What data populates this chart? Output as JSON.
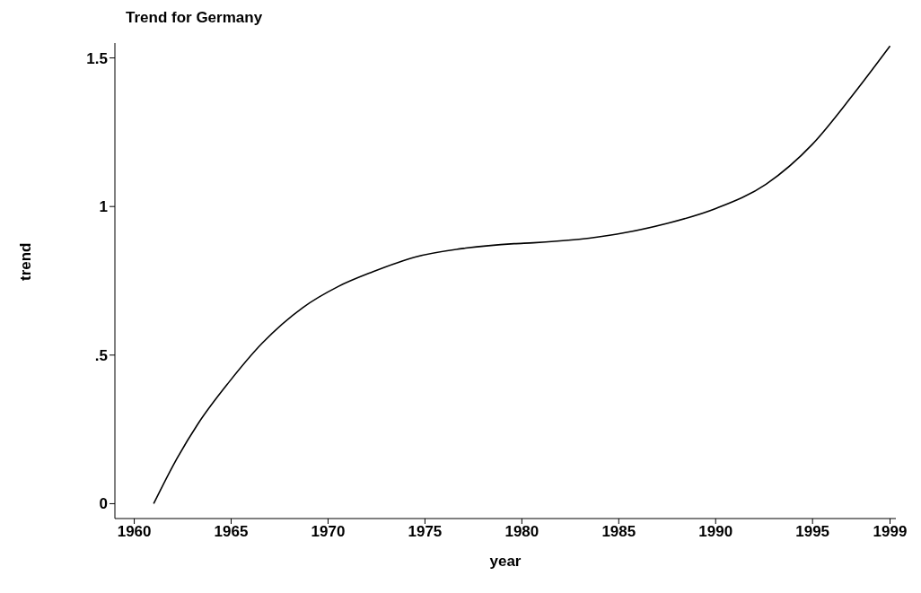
{
  "chart_data": {
    "type": "line",
    "title": "Trend for Germany",
    "xlabel": "year",
    "ylabel": "trend",
    "x": [
      1961,
      1962.1,
      1963.3,
      1964.9,
      1966.6,
      1968.7,
      1970.5,
      1972.3,
      1974.5,
      1977.1,
      1979.6,
      1980.6,
      1984.9,
      1987.5,
      1990,
      1992.6,
      1995,
      1997.1,
      1999
    ],
    "series": [
      {
        "color": "#000000",
        "values": [
          0,
          0.14,
          0.27,
          0.41,
          0.54,
          0.66,
          0.73,
          0.78,
          0.83,
          0.86,
          0.875,
          0.878,
          0.907,
          0.943,
          0.993,
          1.075,
          1.21,
          1.377,
          1.54
        ]
      }
    ],
    "xlim": [
      1959,
      1999.3
    ],
    "xticks": [
      1960,
      1965,
      1970,
      1975,
      1980,
      1985,
      1990,
      1995,
      1999
    ],
    "ylim": [
      -0.05,
      1.55
    ],
    "yticks": [
      {
        "value": 0,
        "label": "0"
      },
      {
        "value": 0.5,
        "label": ".5"
      },
      {
        "value": 1,
        "label": "1"
      },
      {
        "value": 1.5,
        "label": "1.5"
      }
    ],
    "grid": false,
    "legend": false,
    "marker": "none",
    "line_style": "solid"
  }
}
